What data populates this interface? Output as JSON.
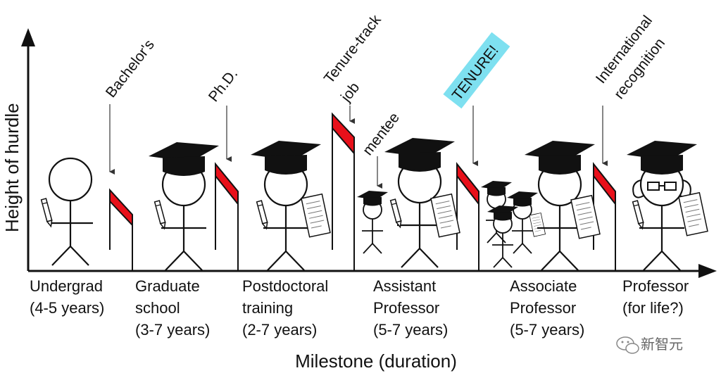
{
  "axes": {
    "y_label": "Height of hurdle",
    "x_label": "Milestone (duration)"
  },
  "stages": [
    {
      "line1": "Undergrad",
      "line2": "(4-5 years)",
      "line3": ""
    },
    {
      "line1": "Graduate",
      "line2": "school",
      "line3": "(3-7 years)"
    },
    {
      "line1": "Postdoctoral",
      "line2": "training",
      "line3": "(2-7 years)"
    },
    {
      "line1": "Assistant",
      "line2": "Professor",
      "line3": "(5-7 years)"
    },
    {
      "line1": "Associate",
      "line2": "Professor",
      "line3": "(5-7 years)"
    },
    {
      "line1": "Professor",
      "line2": "(for life?)",
      "line3": ""
    }
  ],
  "milestones": {
    "bachelors": "Bachelor's",
    "phd": "Ph.D.",
    "tenure_track_1": "Tenure-track",
    "tenure_track_2": "job",
    "mentee": "mentee",
    "tenure": "TENURE!",
    "international_1": "International",
    "international_2": "recognition"
  },
  "colors": {
    "hurdle": "#e8101a",
    "tenure_highlight": "#7ee0f0",
    "ink": "#111111"
  },
  "watermark": "新智元"
}
